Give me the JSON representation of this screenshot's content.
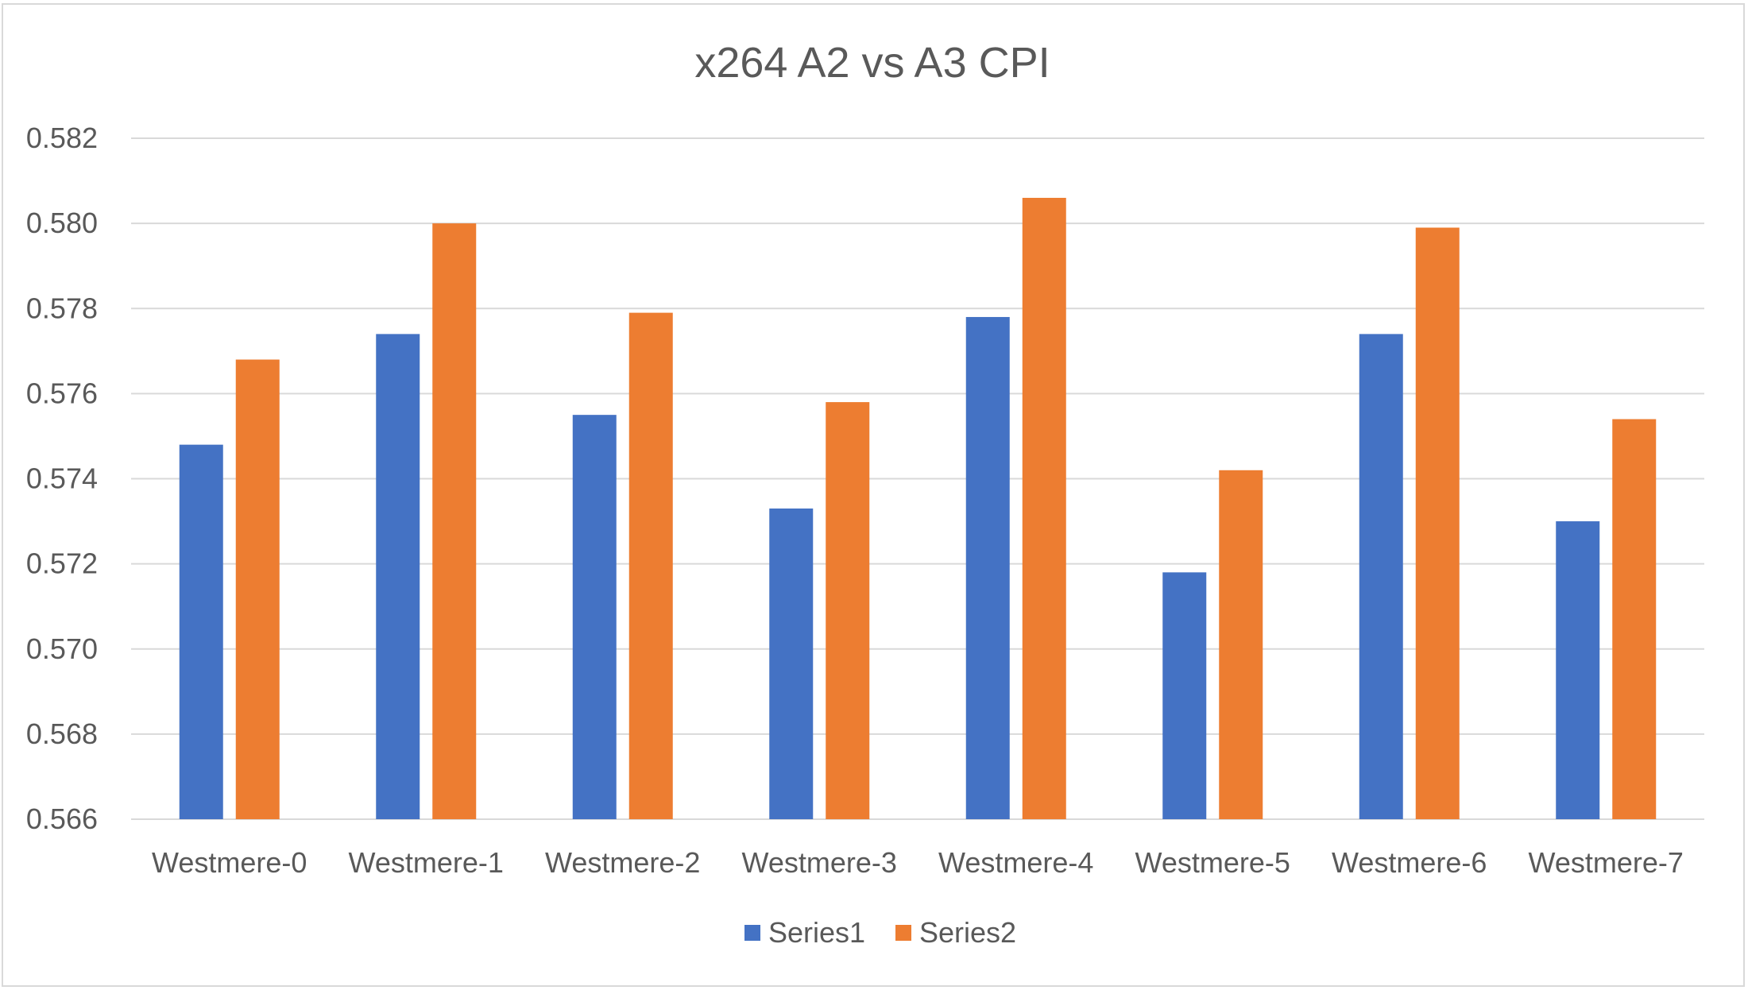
{
  "chart_data": {
    "type": "bar",
    "title": "x264 A2 vs A3 CPI",
    "xlabel": "",
    "ylabel": "",
    "categories": [
      "Westmere-0",
      "Westmere-1",
      "Westmere-2",
      "Westmere-3",
      "Westmere-4",
      "Westmere-5",
      "Westmere-6",
      "Westmere-7"
    ],
    "series": [
      {
        "name": "Series1",
        "color": "#4472C4",
        "values": [
          0.5748,
          0.5774,
          0.5755,
          0.5733,
          0.5778,
          0.5718,
          0.5774,
          0.573
        ]
      },
      {
        "name": "Series2",
        "color": "#ED7D31",
        "values": [
          0.5768,
          0.58,
          0.5779,
          0.5758,
          0.5806,
          0.5742,
          0.5799,
          0.5754
        ]
      }
    ],
    "ylim": [
      0.566,
      0.582
    ],
    "yticks": [
      "0.566",
      "0.568",
      "0.570",
      "0.572",
      "0.574",
      "0.576",
      "0.578",
      "0.580",
      "0.582"
    ],
    "grid": true,
    "legend_position": "bottom"
  }
}
